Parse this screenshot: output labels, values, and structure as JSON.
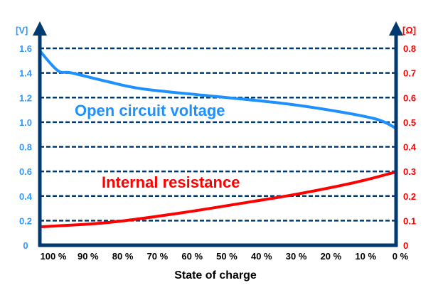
{
  "chart_data": {
    "type": "line",
    "xlabel": "State of charge",
    "x_tick_labels": [
      "100 %",
      "90 %",
      "80 %",
      "70 %",
      "60 %",
      "50 %",
      "40 %",
      "30 %",
      "20 %",
      "10 %",
      "0 %"
    ],
    "x_range": [
      100,
      0
    ],
    "left_axis": {
      "unit_label": "[V]",
      "ylim": [
        0,
        1.6
      ],
      "tick_labels": [
        "0",
        "0.2",
        "0.4",
        "0.6",
        "0.8",
        "1.0",
        "1.2",
        "1.4",
        "1.6"
      ],
      "color": "#3399ff"
    },
    "right_axis": {
      "unit_label": "[Ω]",
      "ylim": [
        0,
        0.8
      ],
      "tick_labels": [
        "0",
        "0.1",
        "0.2",
        "0.3",
        "0.4",
        "0.5",
        "0.6",
        "0.7",
        "0.8"
      ],
      "color": "#ff0000"
    },
    "grid": true,
    "series": [
      {
        "name": "Open circuit voltage",
        "axis": "left",
        "color": "#1e90ff",
        "x": [
          100,
          95,
          91,
          81,
          71,
          51,
          31,
          15,
          5,
          0
        ],
        "y": [
          1.58,
          1.42,
          1.4,
          1.33,
          1.27,
          1.21,
          1.15,
          1.08,
          1.02,
          0.95
        ]
      },
      {
        "name": "Internal resistance",
        "axis": "right",
        "color": "#ff0000",
        "x": [
          100,
          81,
          61,
          41,
          27,
          11,
          0
        ],
        "y": [
          0.075,
          0.092,
          0.13,
          0.176,
          0.21,
          0.257,
          0.298
        ]
      }
    ]
  }
}
